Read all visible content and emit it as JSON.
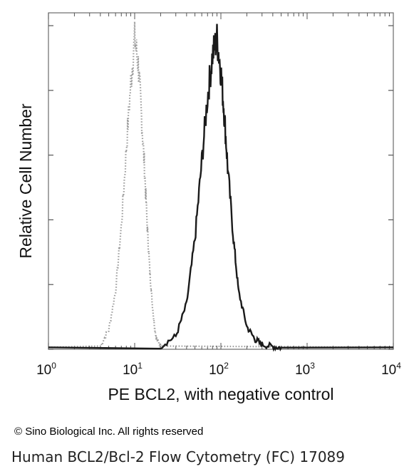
{
  "chart_data": {
    "type": "line",
    "xscale": "log",
    "xlim": [
      1,
      10000
    ],
    "ylim": [
      0,
      100
    ],
    "grid": false,
    "legend": "none",
    "xlabel": "PE BCL2, with negative control",
    "ylabel": "Relative Cell Number",
    "xticks": [
      {
        "value": 1,
        "base": "10",
        "exp": "0"
      },
      {
        "value": 10,
        "base": "10",
        "exp": "1"
      },
      {
        "value": 100,
        "base": "10",
        "exp": "2"
      },
      {
        "value": 1000,
        "base": "10",
        "exp": "3"
      },
      {
        "value": 10000,
        "base": "10",
        "exp": "4"
      }
    ],
    "series": [
      {
        "style": "dotted",
        "color": "#9a9a9a",
        "x": [
          4,
          5,
          6,
          7,
          8,
          9,
          10,
          11,
          12,
          13,
          14,
          15,
          16,
          17,
          18,
          20
        ],
        "y": [
          1,
          6,
          18,
          38,
          62,
          82,
          96,
          88,
          72,
          56,
          38,
          24,
          14,
          7,
          3,
          1
        ]
      },
      {
        "style": "solid",
        "color": "#1a1a1a",
        "x": [
          20,
          30,
          40,
          50,
          60,
          70,
          80,
          90,
          100,
          110,
          120,
          140,
          160,
          200,
          250,
          300,
          400,
          500
        ],
        "y": [
          1,
          4,
          14,
          34,
          58,
          78,
          91,
          96,
          86,
          72,
          56,
          34,
          18,
          7,
          3,
          1.5,
          0.8,
          0.5
        ]
      }
    ]
  },
  "footer": {
    "copyright": "© Sino Biological Inc. All rights reserved",
    "caption": "Human BCL2/Bcl-2 Flow Cytometry (FC) 17089"
  }
}
